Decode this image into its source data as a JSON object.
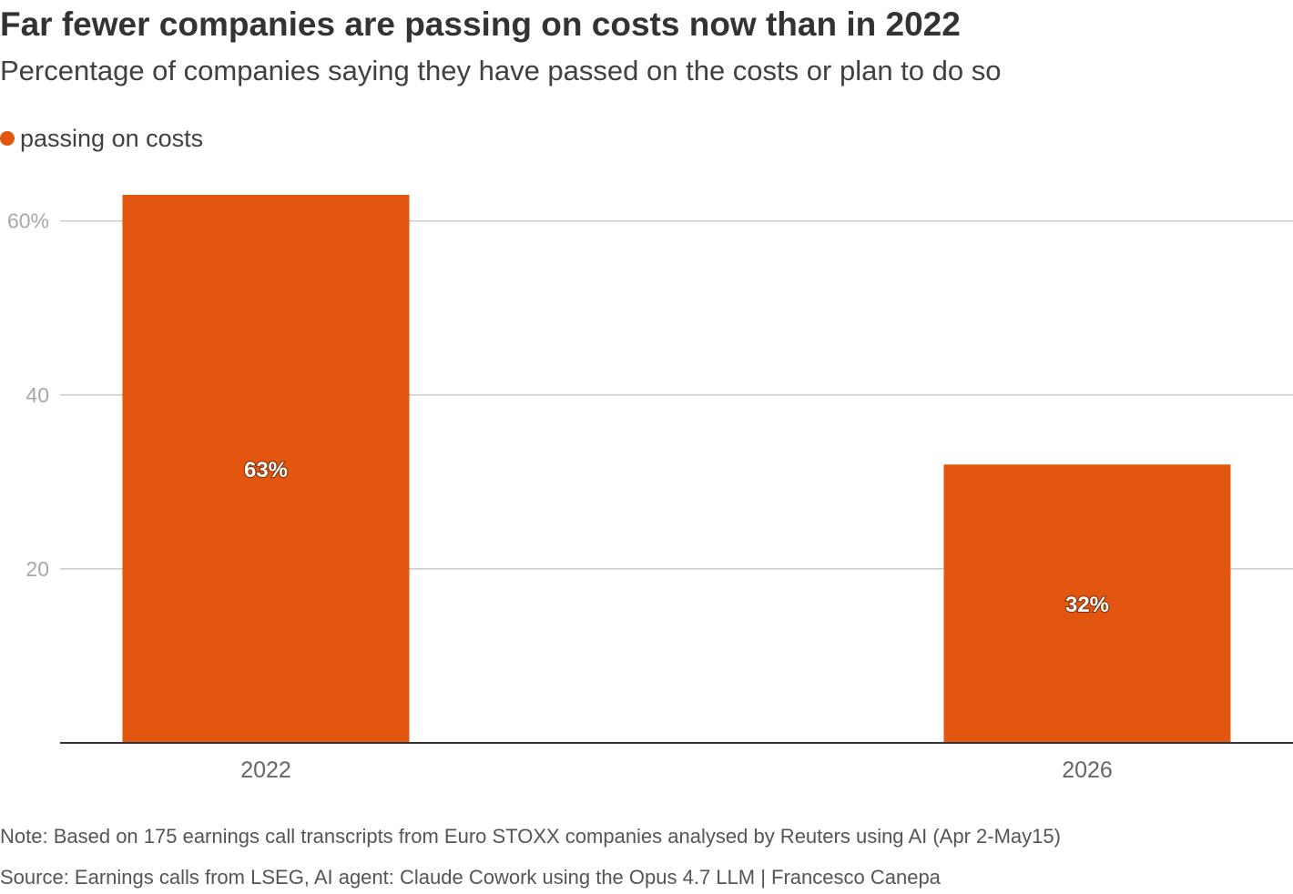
{
  "header": {
    "title": "Far fewer companies are passing on costs now than in 2022",
    "subtitle": "Percentage of companies saying they have passed on the costs or plan to do so"
  },
  "legend": {
    "label": "passing on costs",
    "color": "#e2560f"
  },
  "chart_data": {
    "type": "bar",
    "title": "Far fewer companies are passing on costs now than in 2022",
    "subtitle": "Percentage of companies saying they have passed on the costs or plan to do so",
    "categories": [
      "2022",
      "2026"
    ],
    "series": [
      {
        "name": "passing on costs",
        "values": [
          63,
          32
        ],
        "color": "#e2560f"
      }
    ],
    "data_labels": [
      "63%",
      "32%"
    ],
    "y_ticks": [
      {
        "value": 20,
        "label": "20"
      },
      {
        "value": 40,
        "label": "40"
      },
      {
        "value": 60,
        "label": "60%"
      }
    ],
    "ylim": [
      0,
      65
    ],
    "xlabel": "",
    "ylabel": "",
    "grid": true,
    "legend_position": "top-left"
  },
  "footer": {
    "note": "Note: Based on 175 earnings call transcripts from Euro STOXX companies analysed by Reuters using AI (Apr 2-May15)",
    "source": "Source: Earnings calls from LSEG, AI agent: Claude Cowork using the Opus 4.7 LLM | Francesco Canepa"
  }
}
